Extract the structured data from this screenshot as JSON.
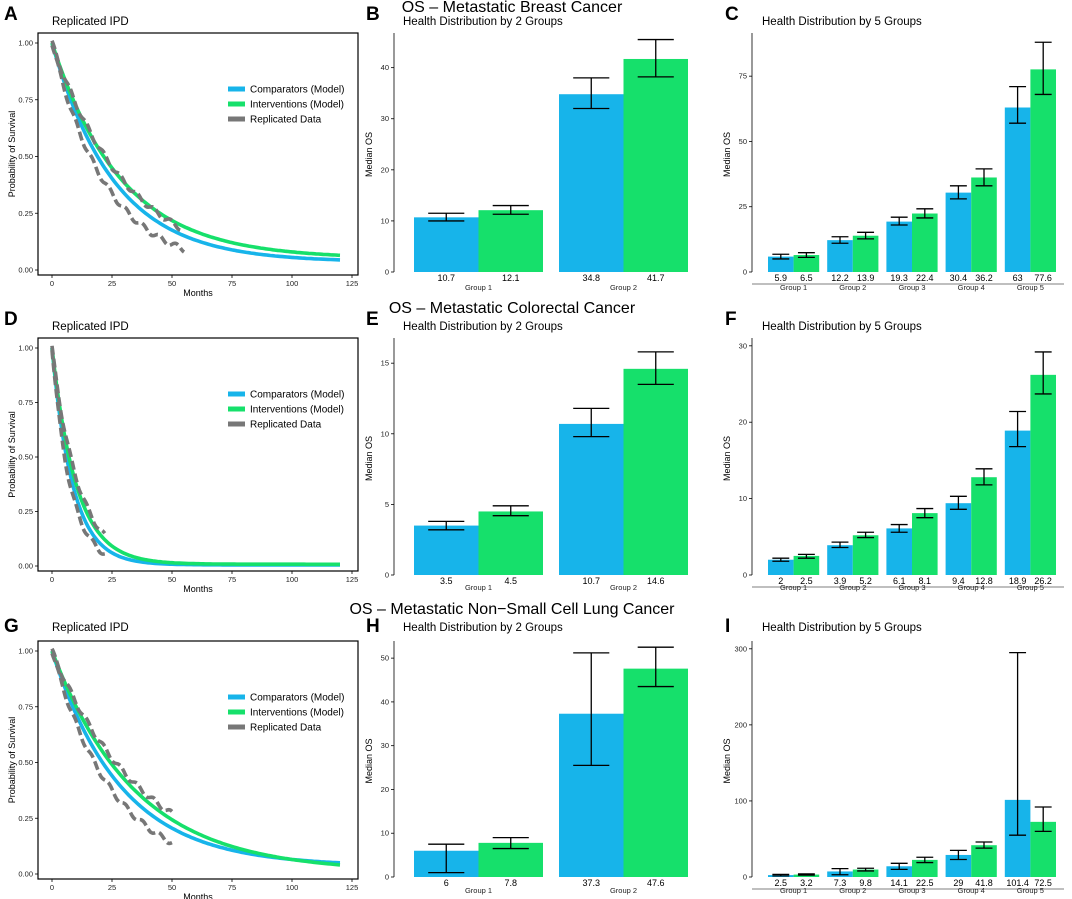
{
  "figure": {
    "colors": {
      "comparator": "#17B4EA",
      "intervention": "#16E06B",
      "replicated": "#777777",
      "errorbar": "#000000"
    },
    "legend": {
      "comparator": "Comparators (Model)",
      "intervention": "Interventions (Model)",
      "replicated": "Replicated Data"
    }
  },
  "rows": [
    {
      "title": "OS – Metastatic Breast Cancer",
      "km": {
        "label": "A",
        "title": "Replicated IPD",
        "xlabel": "Months",
        "ylabel": "Probability of Survival",
        "xlim": [
          0,
          125
        ],
        "ylim": [
          0,
          1.0
        ],
        "xticks": [
          "0",
          "25",
          "50",
          "75",
          "100",
          "125"
        ],
        "yticks": [
          "0.00",
          "0.25",
          "0.50",
          "0.75",
          "1.00"
        ],
        "comparator_median": 18,
        "intervention_median": 20,
        "tail_comparator": 0.035,
        "tail_intervention": 0.05,
        "replicated_max_month": 55
      },
      "bar2": {
        "label": "B",
        "title": "Health Distribution by 2 Groups",
        "ylabel": "Median OS",
        "ylim": [
          0,
          46
        ],
        "yticks": [
          0,
          10,
          20,
          30,
          40
        ],
        "categories": [
          "Group 1",
          "Group 2"
        ],
        "series": [
          {
            "name": "Comparators",
            "values": [
              10.7,
              34.8
            ],
            "err_low": [
              10.0,
              32.0
            ],
            "err_high": [
              11.5,
              38.0
            ],
            "labels": [
              "10.7",
              "34.8"
            ]
          },
          {
            "name": "Interventions",
            "values": [
              12.1,
              41.7
            ],
            "err_low": [
              11.3,
              38.2
            ],
            "err_high": [
              13.0,
              45.5
            ],
            "labels": [
              "12.1",
              "41.7"
            ]
          }
        ]
      },
      "bar5": {
        "label": "C",
        "title": "Health Distribution by 5 Groups",
        "ylabel": "Median OS",
        "ylim": [
          0,
          90
        ],
        "yticks": [
          0,
          25,
          50,
          75
        ],
        "categories": [
          "Group 1",
          "Group 2",
          "Group 3",
          "Group 4",
          "Group 5"
        ],
        "series": [
          {
            "name": "Comparators",
            "values": [
              5.9,
              12.2,
              19.3,
              30.4,
              63.0
            ],
            "err_low": [
              5.0,
              11.0,
              18.0,
              28.0,
              57.0
            ],
            "err_high": [
              6.8,
              13.5,
              21.0,
              33.0,
              71.0
            ],
            "labels": [
              "5.9",
              "12.2",
              "19.3",
              "30.4",
              "63"
            ]
          },
          {
            "name": "Interventions",
            "values": [
              6.5,
              13.9,
              22.4,
              36.2,
              77.6
            ],
            "err_low": [
              5.6,
              12.7,
              20.7,
              33.0,
              68.0
            ],
            "err_high": [
              7.4,
              15.2,
              24.2,
              39.5,
              88.0
            ],
            "labels": [
              "6.5",
              "13.9",
              "22.4",
              "36.2",
              "77.6"
            ]
          }
        ]
      }
    },
    {
      "title": "OS – Metastatic Colorectal Cancer",
      "km": {
        "label": "D",
        "title": "Replicated IPD",
        "xlabel": "Months",
        "ylabel": "Probability of Survival",
        "xlim": [
          0,
          125
        ],
        "ylim": [
          0,
          1.0
        ],
        "xticks": [
          "0",
          "25",
          "50",
          "75",
          "100",
          "125"
        ],
        "yticks": [
          "0.00",
          "0.25",
          "0.50",
          "0.75",
          "1.00"
        ],
        "comparator_median": 6,
        "intervention_median": 7,
        "tail_comparator": 0.005,
        "tail_intervention": 0.008,
        "replicated_max_month": 22
      },
      "bar2": {
        "label": "E",
        "title": "Health Distribution by 2 Groups",
        "ylabel": "Median OS",
        "ylim": [
          0,
          16.5
        ],
        "yticks": [
          0,
          5,
          10,
          15
        ],
        "categories": [
          "Group 1",
          "Group 2"
        ],
        "series": [
          {
            "name": "Comparators",
            "values": [
              3.5,
              10.7
            ],
            "err_low": [
              3.2,
              9.8
            ],
            "err_high": [
              3.8,
              11.8
            ],
            "labels": [
              "3.5",
              "10.7"
            ]
          },
          {
            "name": "Interventions",
            "values": [
              4.5,
              14.6
            ],
            "err_low": [
              4.2,
              13.5
            ],
            "err_high": [
              4.9,
              15.8
            ],
            "labels": [
              "4.5",
              "14.6"
            ]
          }
        ]
      },
      "bar5": {
        "label": "F",
        "title": "Health Distribution by 5 Groups",
        "ylabel": "Median OS",
        "ylim": [
          0,
          30.5
        ],
        "yticks": [
          0,
          10,
          20,
          30
        ],
        "categories": [
          "Group 1",
          "Group 2",
          "Group 3",
          "Group 4",
          "Group 5"
        ],
        "series": [
          {
            "name": "Comparators",
            "values": [
              2.0,
              3.9,
              6.1,
              9.4,
              18.9
            ],
            "err_low": [
              1.8,
              3.6,
              5.6,
              8.6,
              16.8
            ],
            "err_high": [
              2.2,
              4.3,
              6.6,
              10.3,
              21.4
            ],
            "labels": [
              "2",
              "3.9",
              "6.1",
              "9.4",
              "18.9"
            ]
          },
          {
            "name": "Interventions",
            "values": [
              2.5,
              5.2,
              8.1,
              12.8,
              26.2
            ],
            "err_low": [
              2.2,
              4.9,
              7.5,
              11.8,
              23.7
            ],
            "err_high": [
              2.7,
              5.6,
              8.7,
              13.9,
              29.2
            ],
            "labels": [
              "2.5",
              "5.2",
              "8.1",
              "12.8",
              "26.2"
            ]
          }
        ]
      }
    },
    {
      "title": "OS – Metastatic Non−Small Cell Lung Cancer",
      "km": {
        "label": "G",
        "title": "Replicated IPD",
        "xlabel": "Months",
        "ylabel": "Probability of Survival",
        "xlim": [
          0,
          125
        ],
        "ylim": [
          0,
          1.0
        ],
        "xticks": [
          "0",
          "25",
          "50",
          "75",
          "100",
          "125"
        ],
        "yticks": [
          "0.00",
          "0.25",
          "0.50",
          "0.75",
          "1.00"
        ],
        "comparator_median": 20,
        "intervention_median": 24,
        "tail_comparator": 0.035,
        "tail_intervention": 0.01,
        "replicated_max_month": 50
      },
      "bar2": {
        "label": "H",
        "title": "Health Distribution by 2 Groups",
        "ylabel": "Median OS",
        "ylim": [
          0,
          53
        ],
        "yticks": [
          0,
          10,
          20,
          30,
          40,
          50
        ],
        "categories": [
          "Group 1",
          "Group 2"
        ],
        "series": [
          {
            "name": "Comparators",
            "values": [
              6.0,
              37.3
            ],
            "err_low": [
              1.0,
              25.5
            ],
            "err_high": [
              7.5,
              51.2
            ],
            "labels": [
              "6",
              "37.3"
            ]
          },
          {
            "name": "Interventions",
            "values": [
              7.8,
              47.6
            ],
            "err_low": [
              6.5,
              43.5
            ],
            "err_high": [
              9.0,
              52.5
            ],
            "labels": [
              "7.8",
              "47.6"
            ]
          }
        ]
      },
      "bar5": {
        "label": "I",
        "title": "Health Distribution by 5 Groups",
        "ylabel": "Median OS",
        "ylim": [
          0,
          305
        ],
        "yticks": [
          0,
          100,
          200,
          300
        ],
        "categories": [
          "Group 1",
          "Group 2",
          "Group 3",
          "Group 4",
          "Group 5"
        ],
        "series": [
          {
            "name": "Comparators",
            "values": [
              2.5,
              7.3,
              14.1,
              29.0,
              101.4
            ],
            "err_low": [
              1.5,
              3.0,
              10.0,
              23.0,
              55.0
            ],
            "err_high": [
              3.5,
              11.0,
              18.0,
              35.0,
              295.0
            ],
            "labels": [
              "2.5",
              "7.3",
              "14.1",
              "29",
              "101.4"
            ]
          },
          {
            "name": "Interventions",
            "values": [
              3.2,
              9.8,
              22.5,
              41.8,
              72.5
            ],
            "err_low": [
              2.5,
              8.0,
              19.0,
              38.0,
              60.0
            ],
            "err_high": [
              4.0,
              11.5,
              26.0,
              46.0,
              92.0
            ],
            "labels": [
              "3.2",
              "9.8",
              "22.5",
              "41.8",
              "72.5"
            ]
          }
        ]
      }
    }
  ]
}
